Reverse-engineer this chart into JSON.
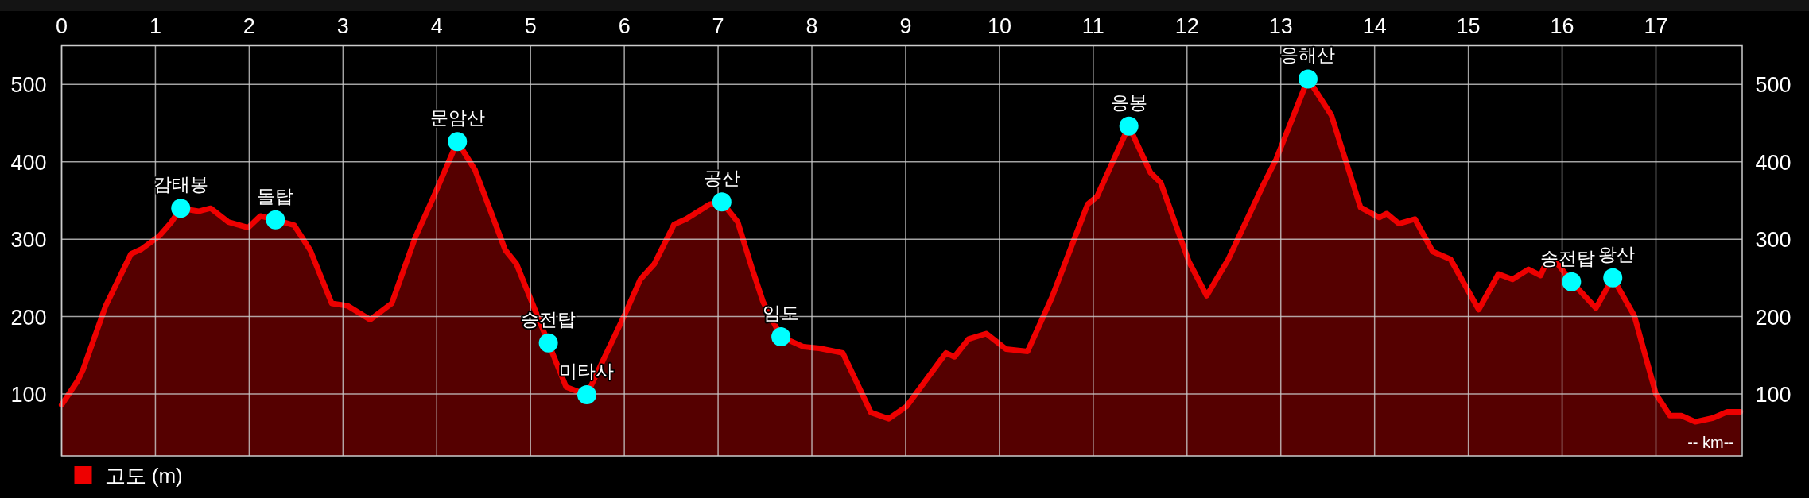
{
  "chart_data": {
    "type": "area",
    "xlabel": "-- km--",
    "xlim": [
      0,
      17.92
    ],
    "xticks": [
      0,
      1,
      2,
      3,
      4,
      5,
      6,
      7,
      8,
      9,
      10,
      11,
      12,
      13,
      14,
      15,
      16,
      17
    ],
    "ylim": [
      20,
      550
    ],
    "yticks": [
      100,
      200,
      300,
      400,
      500
    ],
    "y2lim": [
      20,
      550
    ],
    "y2ticks": [
      100,
      200,
      300,
      400,
      500
    ],
    "grid": true,
    "legend": "bottom left",
    "series": [
      {
        "name": "고도 (m)",
        "color": "#ee0000",
        "x": [
          0,
          0.17,
          0.23,
          0.47,
          0.74,
          0.85,
          1.04,
          1.17,
          1.27,
          1.46,
          1.59,
          1.78,
          1.99,
          2.12,
          2.28,
          2.48,
          2.65,
          2.88,
          3.05,
          3.29,
          3.52,
          3.77,
          3.96,
          4.22,
          4.41,
          4.73,
          4.85,
          5.19,
          5.38,
          5.6,
          6.01,
          6.17,
          6.32,
          6.53,
          6.66,
          6.91,
          7.04,
          7.21,
          7.36,
          7.48,
          7.67,
          7.91,
          8.08,
          8.33,
          8.63,
          8.82,
          9.01,
          9.43,
          9.52,
          9.67,
          9.86,
          10.07,
          10.3,
          10.56,
          10.94,
          11.04,
          11.38,
          11.61,
          11.72,
          12.02,
          12.21,
          12.44,
          12.82,
          12.95,
          13.29,
          13.54,
          13.85,
          14.05,
          14.13,
          14.26,
          14.43,
          14.62,
          14.81,
          15.11,
          15.32,
          15.47,
          15.64,
          15.77,
          15.87,
          16.1,
          16.36,
          16.54,
          16.77,
          17.0,
          17.15,
          17.27,
          17.42,
          17.61,
          17.76,
          17.9
        ],
        "values": [
          86,
          117,
          132,
          214,
          281,
          287,
          304,
          322,
          340,
          336,
          340,
          322,
          315,
          330,
          325,
          318,
          286,
          217,
          214,
          196,
          217,
          302,
          353,
          426,
          389,
          286,
          268,
          166,
          109,
          99,
          204,
          248,
          268,
          319,
          326,
          345,
          348,
          322,
          263,
          219,
          174,
          161,
          159,
          153,
          76,
          68,
          84,
          153,
          148,
          171,
          178,
          158,
          155,
          225,
          345,
          355,
          446,
          386,
          373,
          271,
          227,
          274,
          372,
          403,
          507,
          460,
          341,
          328,
          333,
          320,
          326,
          284,
          274,
          209,
          255,
          248,
          261,
          253,
          281,
          245,
          211,
          250,
          201,
          100,
          72,
          72,
          64,
          69,
          77,
          77
        ]
      },
      {
        "type": "scatter",
        "color": "#00ffff",
        "marker": "circle",
        "x": [
          1.27,
          2.28,
          4.22,
          5.19,
          5.6,
          7.04,
          7.67,
          11.38,
          13.29,
          16.1,
          16.54
        ],
        "values": [
          340,
          325,
          426,
          166,
          99,
          348,
          174,
          446,
          507,
          245,
          250
        ]
      }
    ],
    "annotations": [
      {
        "text": "감태봉",
        "x": 1.27,
        "y": 340
      },
      {
        "text": "돌탑",
        "x": 2.28,
        "y": 325
      },
      {
        "text": "문암산",
        "x": 4.22,
        "y": 426
      },
      {
        "text": "송전탑",
        "x": 5.19,
        "y": 166
      },
      {
        "text": "미타사",
        "x": 5.6,
        "y": 99
      },
      {
        "text": "공산",
        "x": 7.04,
        "y": 348
      },
      {
        "text": "임도",
        "x": 7.67,
        "y": 174
      },
      {
        "text": "응봉",
        "x": 11.38,
        "y": 446
      },
      {
        "text": "응해산",
        "x": 13.29,
        "y": 507
      },
      {
        "text": "송전탑",
        "x": 16.1,
        "y": 245
      },
      {
        "text": "왕산",
        "x": 16.54,
        "y": 250
      }
    ]
  }
}
